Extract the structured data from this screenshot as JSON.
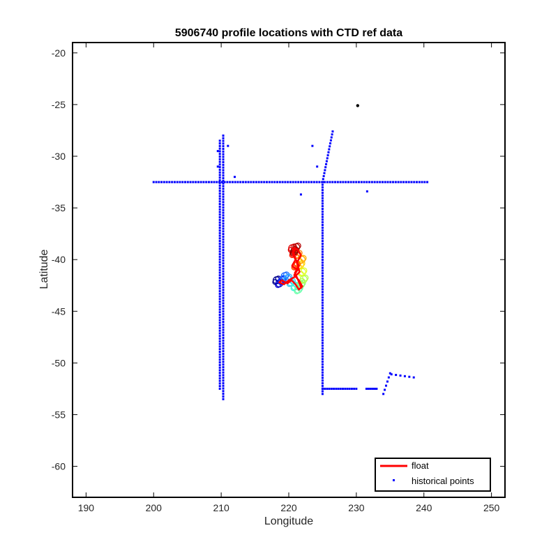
{
  "chart_data": {
    "type": "scatter",
    "title": "5906740 profile locations with CTD ref data",
    "xlabel": "Longitude",
    "ylabel": "Latitude",
    "xlim": [
      188,
      252
    ],
    "ylim": [
      -63,
      -19
    ],
    "xticks": [
      190,
      200,
      210,
      220,
      230,
      240,
      250
    ],
    "yticks": [
      -20,
      -25,
      -30,
      -35,
      -40,
      -45,
      -50,
      -55,
      -60
    ],
    "grid": false,
    "legend_position": "bottom-right",
    "colors": {
      "float": "#ff0000",
      "historical": "#0000ff",
      "marker": "#000000"
    },
    "legend": [
      {
        "label": "float",
        "kind": "line",
        "color": "#ff0000"
      },
      {
        "label": "historical points",
        "kind": "marker",
        "color": "#0000ff"
      }
    ],
    "historical_segments": [
      {
        "from": [
          200,
          -32.5
        ],
        "to": [
          240.5,
          -32.5
        ],
        "n": 105
      },
      {
        "from": [
          209.8,
          -28.5
        ],
        "to": [
          209.8,
          -52.5
        ],
        "n": 95
      },
      {
        "from": [
          210.3,
          -28.0
        ],
        "to": [
          210.3,
          -53.5
        ],
        "n": 100
      },
      {
        "from": [
          225.0,
          -32.5
        ],
        "to": [
          225.0,
          -53.0
        ],
        "n": 80
      },
      {
        "from": [
          225.0,
          -32.5
        ],
        "to": [
          226.5,
          -27.6
        ],
        "n": 18
      },
      {
        "from": [
          225.0,
          -52.5
        ],
        "to": [
          230.0,
          -52.5
        ],
        "n": 16
      },
      {
        "from": [
          231.5,
          -52.5
        ],
        "to": [
          233.0,
          -52.5
        ],
        "n": 6
      },
      {
        "from": [
          234.0,
          -53.0
        ],
        "to": [
          235.0,
          -51.0
        ],
        "n": 6
      },
      {
        "from": [
          235.2,
          -51.1
        ],
        "to": [
          238.5,
          -51.4
        ],
        "n": 6
      }
    ],
    "historical_points": [
      [
        211.0,
        -29.0
      ],
      [
        212.0,
        -32.0
      ],
      [
        223.5,
        -29.0
      ],
      [
        224.2,
        -31.0
      ],
      [
        221.8,
        -33.7
      ],
      [
        231.6,
        -33.4
      ],
      [
        209.5,
        -29.5
      ],
      [
        209.5,
        -31.0
      ]
    ],
    "marker_points": [
      [
        230.2,
        -25.1
      ]
    ],
    "float_track": [
      [
        221.0,
        -38.8
      ],
      [
        220.6,
        -39.5
      ],
      [
        221.0,
        -40.0
      ],
      [
        220.5,
        -40.6
      ],
      [
        221.3,
        -41.0
      ],
      [
        220.8,
        -41.5
      ],
      [
        221.5,
        -42.0
      ],
      [
        222.0,
        -42.6
      ],
      [
        221.5,
        -42.9
      ],
      [
        221.0,
        -42.4
      ],
      [
        220.4,
        -42.0
      ],
      [
        219.8,
        -42.3
      ],
      [
        219.0,
        -42.0
      ],
      [
        218.6,
        -42.2
      ],
      [
        219.3,
        -42.4
      ],
      [
        220.0,
        -42.0
      ],
      [
        220.8,
        -41.7
      ],
      [
        221.6,
        -41.2
      ],
      [
        221.2,
        -40.3
      ],
      [
        221.8,
        -39.6
      ],
      [
        221.3,
        -39.0
      ],
      [
        220.6,
        -38.9
      ],
      [
        220.9,
        -39.8
      ],
      [
        221.5,
        -40.6
      ],
      [
        220.9,
        -41.3
      ],
      [
        221.4,
        -42.0
      ],
      [
        221.9,
        -42.8
      ]
    ],
    "float_points": [
      {
        "lon": 218.2,
        "lat": -42.0,
        "color": "#00008f"
      },
      {
        "lon": 218.6,
        "lat": -42.3,
        "color": "#0000cc"
      },
      {
        "lon": 219.0,
        "lat": -42.0,
        "color": "#0a24ff"
      },
      {
        "lon": 219.4,
        "lat": -41.6,
        "color": "#1a6bff"
      },
      {
        "lon": 219.8,
        "lat": -41.8,
        "color": "#2ea5ff"
      },
      {
        "lon": 220.3,
        "lat": -42.2,
        "color": "#33ccf2"
      },
      {
        "lon": 220.9,
        "lat": -42.6,
        "color": "#44f5d8"
      },
      {
        "lon": 221.4,
        "lat": -42.9,
        "color": "#66ffaa"
      },
      {
        "lon": 221.8,
        "lat": -42.4,
        "color": "#8cff7a"
      },
      {
        "lon": 222.2,
        "lat": -41.9,
        "color": "#b3ff4d"
      },
      {
        "lon": 222.0,
        "lat": -41.2,
        "color": "#e0ff26"
      },
      {
        "lon": 221.7,
        "lat": -40.5,
        "color": "#ffd60a"
      },
      {
        "lon": 221.9,
        "lat": -40.0,
        "color": "#ffaa00"
      },
      {
        "lon": 221.3,
        "lat": -39.5,
        "color": "#ff7a00"
      },
      {
        "lon": 221.0,
        "lat": -40.6,
        "color": "#ff4a00"
      },
      {
        "lon": 220.7,
        "lat": -39.4,
        "color": "#ff1a00"
      },
      {
        "lon": 220.5,
        "lat": -38.9,
        "color": "#e00000"
      },
      {
        "lon": 221.1,
        "lat": -38.8,
        "color": "#b30000"
      },
      {
        "lon": 220.8,
        "lat": -39.2,
        "color": "#8a0000"
      }
    ]
  }
}
